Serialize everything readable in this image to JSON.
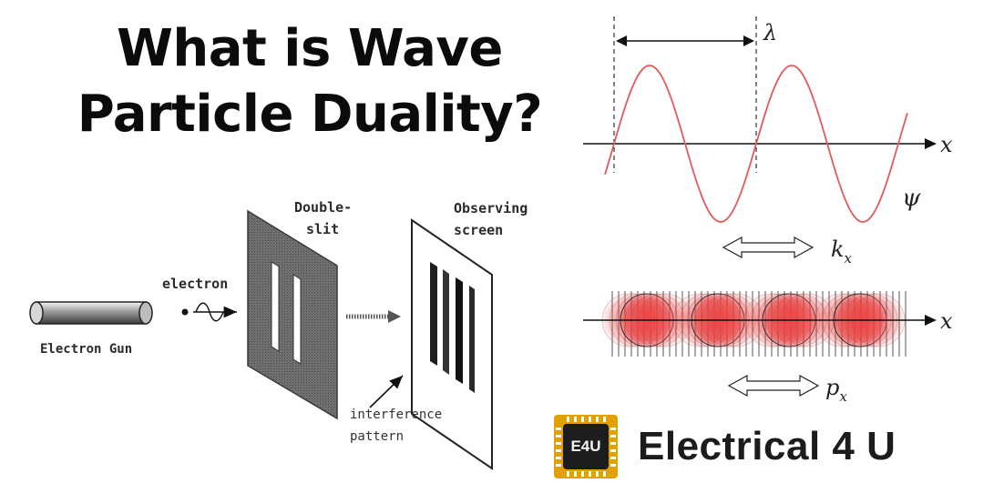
{
  "title": {
    "line1": "What is Wave",
    "line2": "Particle Duality?"
  },
  "double_slit": {
    "electron_gun_label": "Electron Gun",
    "electron_label": "electron",
    "double_slit_label_1": "Double-",
    "double_slit_label_2": "slit",
    "screen_label_1": "Observing",
    "screen_label_2": "screen",
    "pattern_label_1": "interference",
    "pattern_label_2": "pattern"
  },
  "wave": {
    "lambda": "λ",
    "axis_x": "x",
    "psi": "ψ",
    "kx_main": "k",
    "kx_sub": "x"
  },
  "particles": {
    "axis_x": "x",
    "px_main": "p",
    "px_sub": "x"
  },
  "brand": {
    "chip_text": "E4U",
    "name": "Electrical 4 U",
    "colors": {
      "chip": "#e3a100",
      "core": "#1d1d1d",
      "wave": "#e35a5a",
      "particle": "#e83e3e"
    }
  }
}
